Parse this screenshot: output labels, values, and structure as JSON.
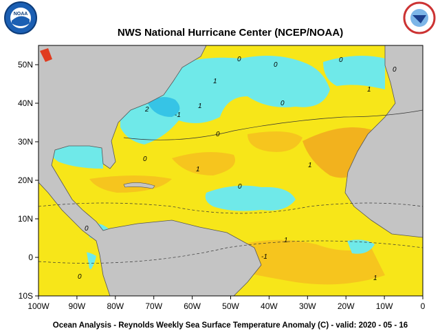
{
  "header": {
    "title": "NWS National Hurricane Center (NCEP/NOAA)",
    "logo_left": "NOAA"
  },
  "map": {
    "xlim": [
      -100,
      0
    ],
    "ylim": [
      -10,
      55
    ],
    "xticks": [
      {
        "value": -100,
        "label": "100W"
      },
      {
        "value": -90,
        "label": "90W"
      },
      {
        "value": -80,
        "label": "80W"
      },
      {
        "value": -70,
        "label": "70W"
      },
      {
        "value": -60,
        "label": "60W"
      },
      {
        "value": -50,
        "label": "50W"
      },
      {
        "value": -40,
        "label": "40W"
      },
      {
        "value": -30,
        "label": "30W"
      },
      {
        "value": -20,
        "label": "20W"
      },
      {
        "value": -10,
        "label": "10W"
      },
      0
    ],
    "yticks": [
      {
        "value": 50,
        "label": "50N"
      },
      {
        "value": 40,
        "label": "40N"
      },
      {
        "value": 30,
        "label": "30N"
      },
      {
        "value": 20,
        "label": "20N"
      },
      {
        "value": 10,
        "label": "10N"
      },
      0,
      {
        "value": -10,
        "label": "10S"
      }
    ],
    "contour_labels": [
      "0",
      "0",
      "0",
      "1",
      "2",
      "-1",
      "1",
      "0",
      "1",
      "0",
      "0",
      "0",
      "1",
      "0",
      "1",
      "-1",
      "1",
      "0",
      "0",
      "1"
    ]
  },
  "footer": "Ocean Analysis - Reynolds Weekly Sea Surface Temperature Anomaly (C) - valid: 2020 - 05 - 16"
}
